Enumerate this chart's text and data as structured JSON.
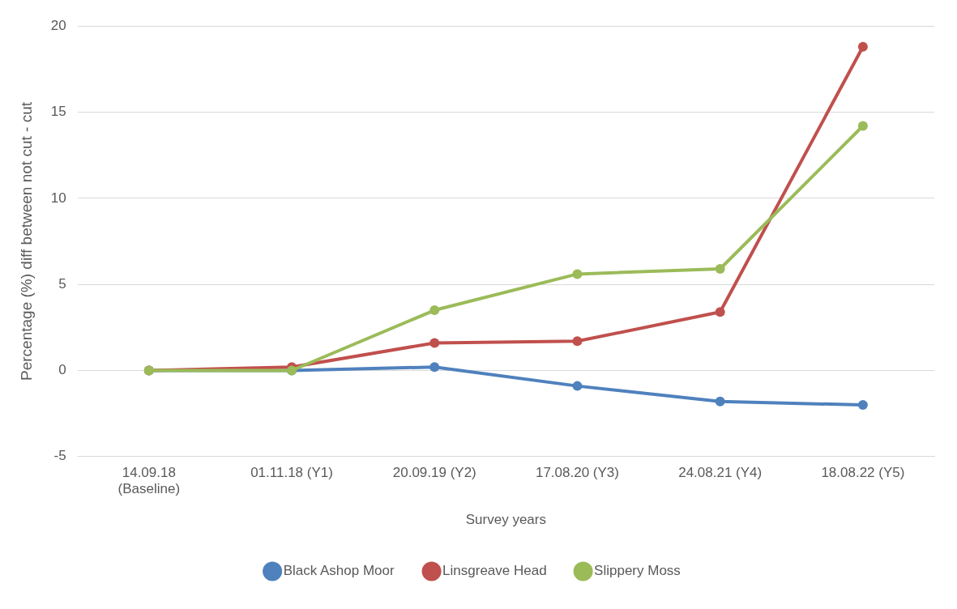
{
  "chart_data": {
    "type": "line",
    "xlabel": "Survey years",
    "ylabel": "Percentage (%) diff between not cut - cut",
    "categories": [
      "14.09.18\n(Baseline)",
      "01.11.18 (Y1)",
      "20.09.19 (Y2)",
      "17.08.20 (Y3)",
      "24.08.21 (Y4)",
      "18.08.22 (Y5)"
    ],
    "series": [
      {
        "name": "Black Ashop Moor",
        "color": "#4f81bd",
        "values": [
          0,
          0,
          0.2,
          -0.9,
          -1.8,
          -2.0
        ]
      },
      {
        "name": "Linsgreave Head",
        "color": "#c0504d",
        "values": [
          0,
          0.2,
          1.6,
          1.7,
          3.4,
          18.8
        ]
      },
      {
        "name": "Slippery Moss",
        "color": "#9bbb59",
        "values": [
          0,
          0,
          3.5,
          5.6,
          5.9,
          14.2
        ]
      }
    ],
    "ylim": [
      -5,
      20
    ],
    "yticks": [
      -5,
      0,
      5,
      10,
      15,
      20
    ],
    "grid": "y",
    "legend": "bottom",
    "marker": "circle",
    "line_style": "solid"
  }
}
